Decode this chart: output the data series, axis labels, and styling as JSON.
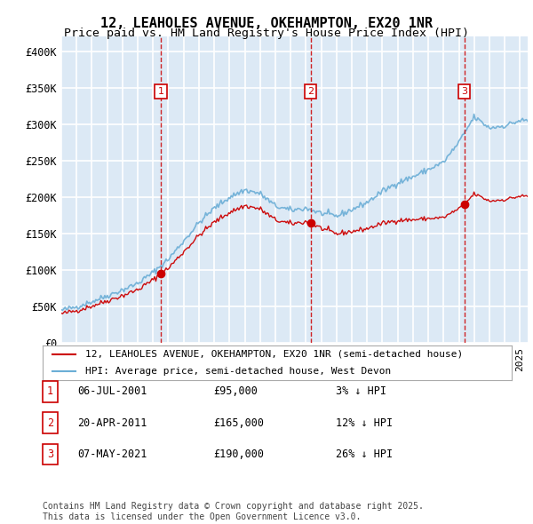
{
  "title": "12, LEAHOLES AVENUE, OKEHAMPTON, EX20 1NR",
  "subtitle": "Price paid vs. HM Land Registry's House Price Index (HPI)",
  "ylabel_ticks": [
    "£0",
    "£50K",
    "£100K",
    "£150K",
    "£200K",
    "£250K",
    "£300K",
    "£350K",
    "£400K"
  ],
  "ytick_values": [
    0,
    50000,
    100000,
    150000,
    200000,
    250000,
    300000,
    350000,
    400000
  ],
  "ylim": [
    0,
    420000
  ],
  "xlim_start": 1995.0,
  "xlim_end": 2025.5,
  "background_color": "#dce9f5",
  "plot_bg_color": "#dce9f5",
  "grid_color": "#ffffff",
  "hpi_color": "#6baed6",
  "price_color": "#cc0000",
  "dashed_line_color": "#cc0000",
  "marker_color": "#cc0000",
  "sale_dates_decimal": [
    2001.51,
    2011.3,
    2021.35
  ],
  "sale_prices": [
    95000,
    165000,
    190000
  ],
  "sale_labels": [
    "1",
    "2",
    "3"
  ],
  "legend_label_price": "12, LEAHOLES AVENUE, OKEHAMPTON, EX20 1NR (semi-detached house)",
  "legend_label_hpi": "HPI: Average price, semi-detached house, West Devon",
  "table_rows": [
    {
      "num": "1",
      "date": "06-JUL-2001",
      "price": "£95,000",
      "note": "3% ↓ HPI"
    },
    {
      "num": "2",
      "date": "20-APR-2011",
      "price": "£165,000",
      "note": "12% ↓ HPI"
    },
    {
      "num": "3",
      "date": "07-MAY-2021",
      "price": "£190,000",
      "note": "26% ↓ HPI"
    }
  ],
  "footnote": "Contains HM Land Registry data © Crown copyright and database right 2025.\nThis data is licensed under the Open Government Licence v3.0.",
  "title_fontsize": 11,
  "subtitle_fontsize": 9.5,
  "tick_fontsize": 8.5,
  "legend_fontsize": 8,
  "table_fontsize": 8.5,
  "footnote_fontsize": 7,
  "hpi_key_years": [
    1995,
    1996,
    1997,
    1998,
    1999,
    2000,
    2001,
    2002,
    2003,
    2004,
    2005,
    2006,
    2007,
    2008,
    2009,
    2010,
    2011,
    2012,
    2013,
    2014,
    2015,
    2016,
    2017,
    2018,
    2019,
    2020,
    2021,
    2022,
    2023,
    2024,
    2025
  ],
  "hpi_key_values": [
    45000,
    50000,
    57000,
    65000,
    73000,
    82000,
    97000,
    115000,
    140000,
    165000,
    185000,
    200000,
    210000,
    205000,
    188000,
    182000,
    185000,
    178000,
    174000,
    183000,
    193000,
    208000,
    220000,
    228000,
    238000,
    248000,
    275000,
    310000,
    295000,
    298000,
    305000
  ]
}
